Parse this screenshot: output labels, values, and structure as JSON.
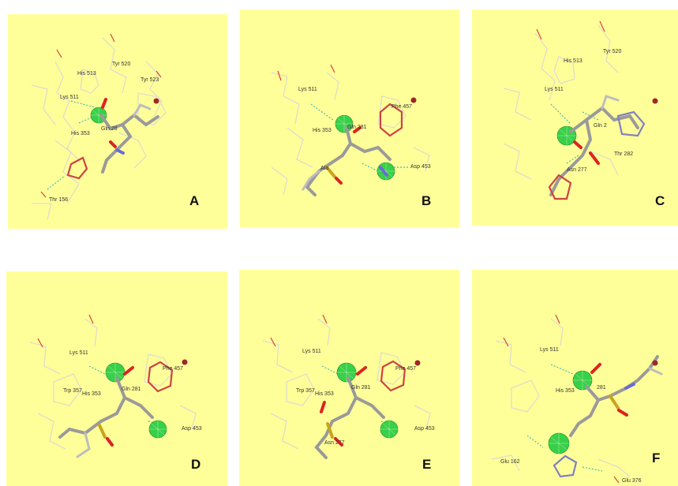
{
  "panels": [
    {
      "letter": "A",
      "labels": [
        "His 513",
        "Tyr 520",
        "Tyr 523",
        "Lys 511",
        "Gln 28",
        "His 353",
        "Thr 156"
      ]
    },
    {
      "letter": "B",
      "labels": [
        "Lys 511",
        "Phe 457",
        "Gln 281",
        "His 353",
        "Ala",
        "Asp 453"
      ]
    },
    {
      "letter": "C",
      "labels": [
        "His 513",
        "Tyr 520",
        "Lys 511",
        "Gln 2",
        "Thr 282",
        "Asn 277"
      ]
    },
    {
      "letter": "D",
      "labels": [
        "Lys 511",
        "Phe 457",
        "Trp 357",
        "His 353",
        "Gln 281",
        "Asp 453"
      ]
    },
    {
      "letter": "E",
      "labels": [
        "Lys 511",
        "Phe 457",
        "Trp 357",
        "His 353",
        "Gln 281",
        "Asn 277",
        "Asp 453"
      ]
    },
    {
      "letter": "F",
      "labels": [
        "Lys 511",
        "His 353",
        "281",
        "Glu 162",
        "Glu 376"
      ]
    }
  ],
  "colors": {
    "background": "#ffff99",
    "zinc": "#a0262a",
    "sphere": "#38d048",
    "hbond": "#44bbbb"
  }
}
